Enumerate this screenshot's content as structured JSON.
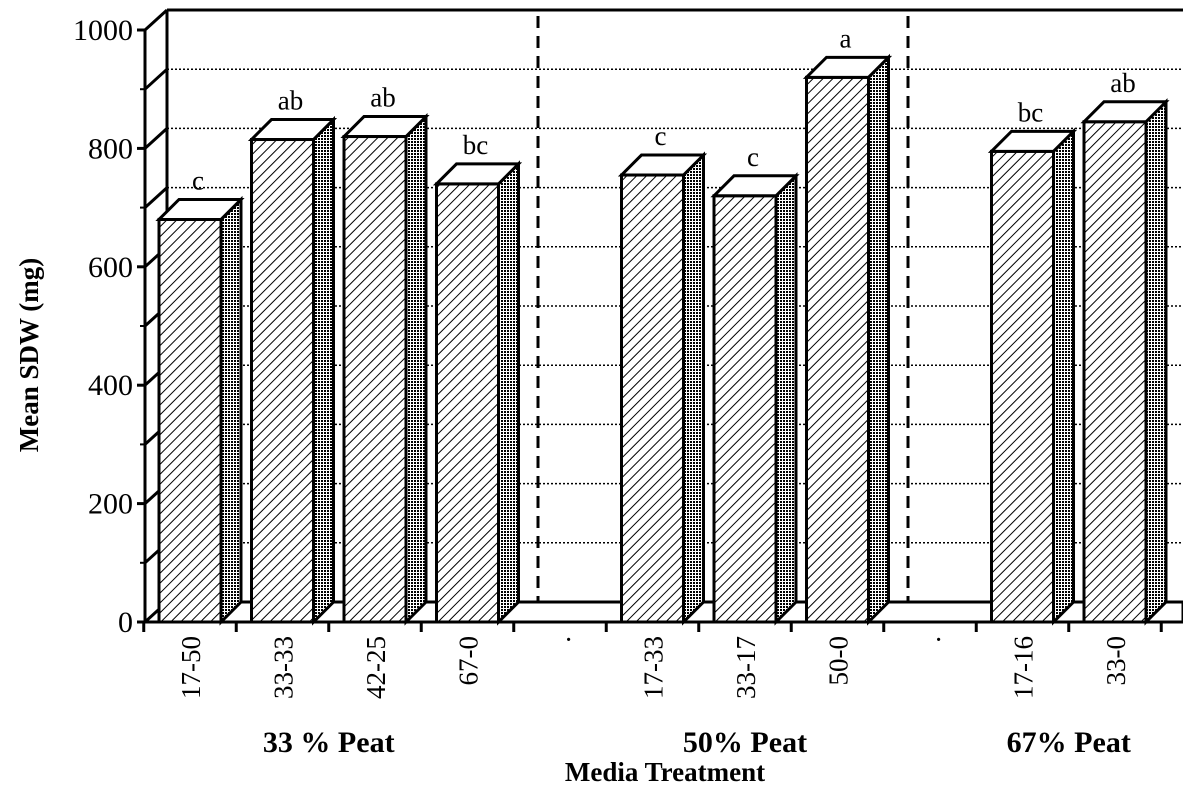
{
  "chart_data": {
    "type": "bar",
    "style": "3d",
    "ylabel": "Mean SDW (mg)",
    "xlabel": "Media Treatment",
    "ylim": [
      0,
      1000
    ],
    "yticks": [
      "0",
      "200",
      "400",
      "600",
      "800",
      "1000"
    ],
    "grid": true,
    "categories": [
      "17-50",
      "33-33",
      "42-25",
      "67-0",
      ".",
      "17-33",
      "33-17",
      "50-0",
      ".",
      "17-16",
      "33-0"
    ],
    "values": [
      680,
      815,
      820,
      740,
      null,
      755,
      720,
      920,
      null,
      795,
      845
    ],
    "significance": [
      "c",
      "ab",
      "ab",
      "bc",
      "",
      "c",
      "c",
      "a",
      "",
      "bc",
      "ab"
    ],
    "groups": [
      {
        "label": "33 % Peat",
        "categories": [
          "17-50",
          "33-33",
          "42-25",
          "67-0"
        ]
      },
      {
        "label": "50% Peat",
        "categories": [
          "17-33",
          "33-17",
          "50-0"
        ]
      },
      {
        "label": "67% Peat",
        "categories": [
          "17-16",
          "33-0"
        ]
      }
    ],
    "group_separators": "dashed vertical lines"
  }
}
